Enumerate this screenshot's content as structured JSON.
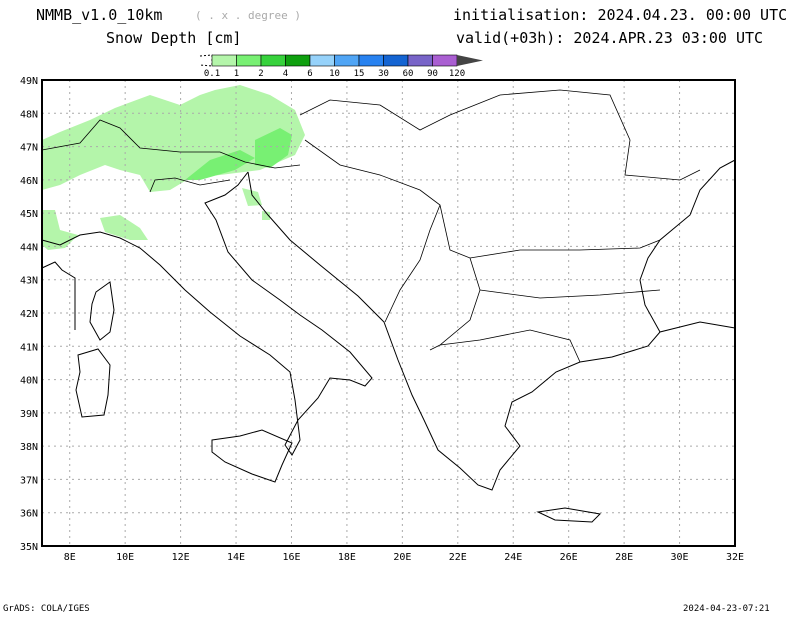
{
  "header": {
    "model": "NMMB_v1.0_10km",
    "projection": "( . x . degree )",
    "variable": "Snow Depth [cm]",
    "init": "initialisation: 2024.04.23.   00:00 UTC",
    "valid": "valid(+03h): 2024.APR.23 03:00 UTC"
  },
  "legend": {
    "levels": [
      "0.1",
      "1",
      "2",
      "4",
      "6",
      "10",
      "15",
      "30",
      "60",
      "90",
      "120"
    ],
    "colors": [
      "#b4f5aa",
      "#78f073",
      "#37d23c",
      "#0fa00f",
      "#96d2fa",
      "#50a5f5",
      "#2882f0",
      "#1464d2",
      "#7864c8",
      "#aa5fd2"
    ]
  },
  "map": {
    "lon_labels": [
      "8E",
      "10E",
      "12E",
      "14E",
      "16E",
      "18E",
      "20E",
      "22E",
      "24E",
      "26E",
      "28E",
      "30E",
      "32E"
    ],
    "lat_labels": [
      "35N",
      "36N",
      "37N",
      "38N",
      "39N",
      "40N",
      "41N",
      "42N",
      "43N",
      "44N",
      "45N",
      "46N",
      "47N",
      "48N",
      "49N"
    ]
  },
  "footer": {
    "left": "GrADS: COLA/IGES",
    "right": "2024-04-23-07:21"
  }
}
